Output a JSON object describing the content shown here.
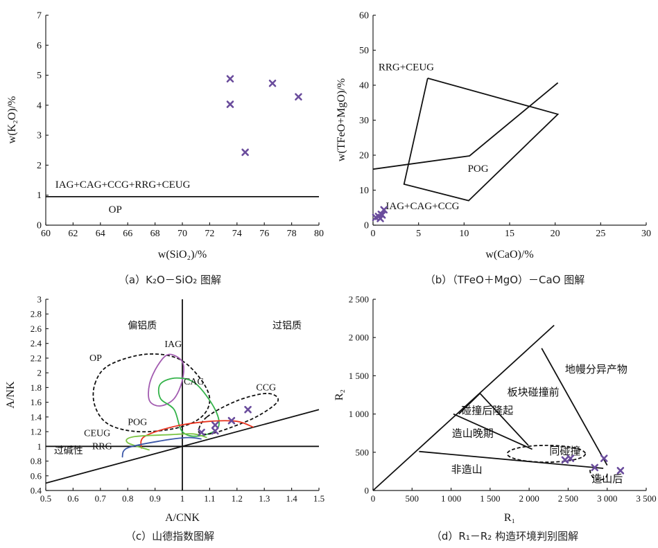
{
  "colors": {
    "marker": "#6a4c9c",
    "IAG": "#a25bb0",
    "CAG": "#34b34a",
    "POG": "#e8321e",
    "CEUG": "#7cc444",
    "RRG": "#3a56a8",
    "black": "#111111"
  },
  "chart_data": [
    {
      "id": "a",
      "type": "scatter",
      "caption": "（a）K₂O－SiO₂ 图解",
      "xlabel": "w(SiO₂)/%",
      "ylabel": "w(K₂O)/%",
      "xlim": [
        60,
        80
      ],
      "ylim": [
        0,
        7
      ],
      "xticks": [
        "60",
        "62",
        "64",
        "66",
        "68",
        "70",
        "72",
        "74",
        "76",
        "78",
        "80"
      ],
      "yticks": [
        "0",
        "1",
        "2",
        "3",
        "4",
        "5",
        "6",
        "7"
      ],
      "points": [
        [
          73.5,
          4.88
        ],
        [
          73.5,
          4.03
        ],
        [
          74.6,
          2.43
        ],
        [
          76.6,
          4.73
        ],
        [
          78.5,
          4.28
        ]
      ],
      "boundaries": [
        {
          "name": "line",
          "points": [
            [
              60,
              0.95
            ],
            [
              80,
              0.95
            ]
          ]
        }
      ],
      "region_labels": [
        {
          "text": "IAG+CAG+CCG+RRG+CEUG",
          "x": 60.7,
          "y": 1.25
        },
        {
          "text": "OP",
          "x": 64.6,
          "y": 0.42
        }
      ]
    },
    {
      "id": "b",
      "type": "scatter",
      "caption": "（b）（TFeO＋MgO）－CaO 图解",
      "xlabel": "w(CaO)/%",
      "ylabel": "w(TFeO+MgO)/%",
      "xlim": [
        0,
        30
      ],
      "ylim": [
        0,
        60
      ],
      "xticks": [
        "0",
        "5",
        "10",
        "15",
        "20",
        "25",
        "30"
      ],
      "yticks": [
        "0",
        "10",
        "20",
        "30",
        "40",
        "50",
        "60"
      ],
      "points": [
        [
          0.3,
          2.2
        ],
        [
          0.6,
          2.5
        ],
        [
          0.9,
          3.1
        ],
        [
          0.8,
          1.9
        ],
        [
          1.0,
          2.9
        ],
        [
          1.2,
          4.4
        ]
      ],
      "boundaries": [
        {
          "name": "POG-field",
          "points": [
            [
              6,
              42
            ],
            [
              20.3,
              31.7
            ],
            [
              10.5,
              7
            ],
            [
              3.4,
              11.7
            ],
            [
              6,
              42
            ]
          ]
        },
        {
          "name": "divider",
          "points": [
            [
              0,
              16
            ],
            [
              10.6,
              19.8
            ],
            [
              20.3,
              40.7
            ]
          ]
        }
      ],
      "region_labels": [
        {
          "text": "RRG+CEUG",
          "x": 0.6,
          "y": 44.3
        },
        {
          "text": "POG",
          "x": 10.4,
          "y": 15.2
        },
        {
          "text": "IAG+CAG+CCG",
          "x": 1.4,
          "y": 4.6
        }
      ]
    },
    {
      "id": "c",
      "type": "scatter",
      "caption": "（c）山德指数图解",
      "xlabel": "A/CNK",
      "ylabel": "A/NK",
      "xlim": [
        0.5,
        1.5
      ],
      "ylim": [
        0.4,
        3.0
      ],
      "xticks": [
        "0.5",
        "0.6",
        "0.7",
        "0.8",
        "0.9",
        "1",
        "1.1",
        "1.2",
        "1.3",
        "1.4",
        "1.5"
      ],
      "yticks": [
        "0.4",
        "0.6",
        "0.8",
        "1",
        "1.2",
        "1.4",
        "1.6",
        "1.8",
        "2",
        "2.2",
        "2.4",
        "2.6",
        "2.8",
        "3"
      ],
      "points": [
        [
          1.07,
          1.19
        ],
        [
          1.12,
          1.21
        ],
        [
          1.12,
          1.29
        ],
        [
          1.18,
          1.35
        ],
        [
          1.24,
          1.5
        ]
      ],
      "region_labels": [
        {
          "text": "偏铝质",
          "x": 0.8,
          "y": 2.6
        },
        {
          "text": "过铝质",
          "x": 1.33,
          "y": 2.6
        },
        {
          "text": "过碱性",
          "x": 0.53,
          "y": 0.9
        },
        {
          "text": "OP",
          "x": 0.66,
          "y": 2.16
        },
        {
          "text": "IAG",
          "x": 0.935,
          "y": 2.35
        },
        {
          "text": "CAG",
          "x": 1.005,
          "y": 1.84
        },
        {
          "text": "CCG",
          "x": 1.27,
          "y": 1.76
        },
        {
          "text": "POG",
          "x": 0.8,
          "y": 1.29
        },
        {
          "text": "CEUG",
          "x": 0.64,
          "y": 1.14
        },
        {
          "text": "RRG",
          "x": 0.67,
          "y": 0.96
        }
      ]
    },
    {
      "id": "d",
      "type": "scatter",
      "caption": "（d）R₁－R₂ 构造环境判别图解",
      "xlabel": "R₁",
      "ylabel": "R₂",
      "xlim": [
        0,
        3500
      ],
      "ylim": [
        0,
        2500
      ],
      "xticks": [
        "0",
        "500",
        "1 000",
        "1 500",
        "2 000",
        "2 500",
        "3 000",
        "3 500"
      ],
      "yticks": [
        "0",
        "500",
        "1 000",
        "1 500",
        "2 000",
        "2 500"
      ],
      "points": [
        [
          2460,
          400
        ],
        [
          2530,
          420
        ],
        [
          2840,
          300
        ],
        [
          2960,
          420
        ],
        [
          3170,
          260
        ]
      ],
      "boundaries": [
        {
          "name": "main-diagonal",
          "points": [
            [
              0,
              0
            ],
            [
              2320,
              2160
            ]
          ]
        },
        {
          "name": "lower",
          "points": [
            [
              590,
              510
            ],
            [
              2950,
              290
            ]
          ]
        },
        {
          "name": "upper-right",
          "points": [
            [
              2160,
              1860
            ],
            [
              3000,
              330
            ]
          ]
        },
        {
          "name": "late-orogenic",
          "points": [
            [
              1030,
              1000
            ],
            [
              2040,
              540
            ]
          ]
        },
        {
          "name": "post-collision",
          "points": [
            [
              1100,
              1000
            ],
            [
              1370,
              1270
            ],
            [
              1990,
              590
            ]
          ]
        }
      ],
      "region_labels": [
        {
          "text": "地幔分异产物",
          "x": 2460,
          "y": 1540
        },
        {
          "text": "板块碰撞前",
          "x": 1720,
          "y": 1240
        },
        {
          "text": "碰撞后隆起",
          "x": 1130,
          "y": 1000
        },
        {
          "text": "造山晚期",
          "x": 1010,
          "y": 700
        },
        {
          "text": "同碰撞",
          "x": 2260,
          "y": 470
        },
        {
          "text": "非造山",
          "x": 1000,
          "y": 230
        },
        {
          "text": "造山后",
          "x": 2800,
          "y": 110
        }
      ]
    }
  ]
}
